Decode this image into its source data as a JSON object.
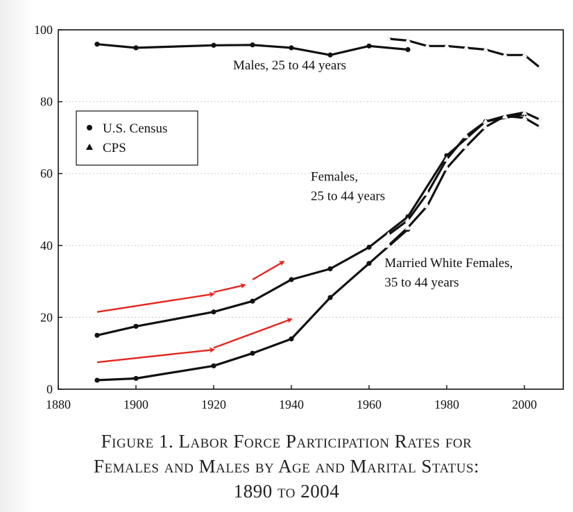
{
  "caption": {
    "line1": "Figure 1. Labor Force Participation Rates for",
    "line2": "Females and Males by Age and Marital Status:",
    "line3": "1890 to 2004"
  },
  "chart_data": {
    "type": "line",
    "xlim": [
      1880,
      2010
    ],
    "ylim": [
      0,
      100
    ],
    "xticks": [
      1880,
      1900,
      1920,
      1940,
      1960,
      1980,
      2000
    ],
    "yticks": [
      0,
      20,
      40,
      60,
      80,
      100
    ],
    "grid": "horizontal dotted",
    "legend": {
      "placement": "top-left",
      "entries": [
        {
          "marker": "circle",
          "label": "U.S. Census"
        },
        {
          "marker": "triangle",
          "label": "CPS"
        }
      ]
    },
    "annotations": [
      {
        "text_lines": [
          "Males, 25 to 44 years"
        ],
        "x": 1925,
        "y": 89
      },
      {
        "text_lines": [
          "Females,",
          "25 to 44 years"
        ],
        "x": 1945,
        "y": 58
      },
      {
        "text_lines": [
          "Married White Females,",
          "35 to 44 years"
        ],
        "x": 1964,
        "y": 34
      }
    ],
    "arrow_color": "#e5261f",
    "arrows": [
      {
        "from": [
          1890,
          21.5
        ],
        "to": [
          1920,
          26.5
        ]
      },
      {
        "from": [
          1920,
          27.0
        ],
        "to": [
          1928,
          29.0
        ]
      },
      {
        "from": [
          1930,
          30.5
        ],
        "to": [
          1938,
          35.5
        ]
      },
      {
        "from": [
          1890,
          7.5
        ],
        "to": [
          1920,
          11.0
        ]
      },
      {
        "from": [
          1920,
          11.5
        ],
        "to": [
          1940,
          19.5
        ]
      }
    ],
    "series": [
      {
        "name": "Males, 25 to 44 years",
        "source": "U.S. Census",
        "marker": "circle",
        "x": [
          1890,
          1900,
          1920,
          1930,
          1940,
          1950,
          1960,
          1970
        ],
        "y": [
          96,
          95,
          95.7,
          95.8,
          95,
          93,
          95.5,
          94.5
        ]
      },
      {
        "name": "Males, 25 to 44 years",
        "source": "CPS",
        "marker": "triangle",
        "x": [
          1965,
          1970,
          1975,
          1980,
          1985,
          1990,
          1995,
          2000,
          2004
        ],
        "y": [
          97.5,
          97,
          95.5,
          95.5,
          95,
          94.5,
          93,
          93,
          89.5
        ]
      },
      {
        "name": "Females, 25 to 44 years",
        "source": "U.S. Census",
        "marker": "circle",
        "x": [
          1890,
          1900,
          1920,
          1930,
          1940,
          1950,
          1960,
          1970,
          1980,
          1990,
          2000
        ],
        "y": [
          15,
          17.5,
          21.5,
          24.5,
          30.5,
          33.5,
          39.5,
          48,
          65,
          74.5,
          76.5
        ]
      },
      {
        "name": "Females, 25 to 44 years",
        "source": "CPS",
        "marker": "triangle",
        "x": [
          1965,
          1970,
          1975,
          1980,
          1985,
          1990,
          1995,
          2000,
          2004
        ],
        "y": [
          43,
          47,
          54.5,
          64,
          70.5,
          74.5,
          76,
          77,
          75
        ]
      },
      {
        "name": "Married White Females, 35 to 44 years",
        "source": "U.S. Census",
        "marker": "circle",
        "x": [
          1890,
          1900,
          1920,
          1930,
          1940,
          1950,
          1960,
          1970
        ],
        "y": [
          2.5,
          3,
          6.5,
          10,
          14,
          25.5,
          35,
          44.5
        ]
      },
      {
        "name": "Married White Females, 35 to 44 years",
        "source": "CPS",
        "marker": "triangle",
        "x": [
          1965,
          1970,
          1975,
          1980,
          1985,
          1990,
          1995,
          2000,
          2004
        ],
        "y": [
          40,
          45,
          51,
          61.5,
          67.5,
          73,
          76,
          75.5,
          73
        ]
      }
    ]
  }
}
